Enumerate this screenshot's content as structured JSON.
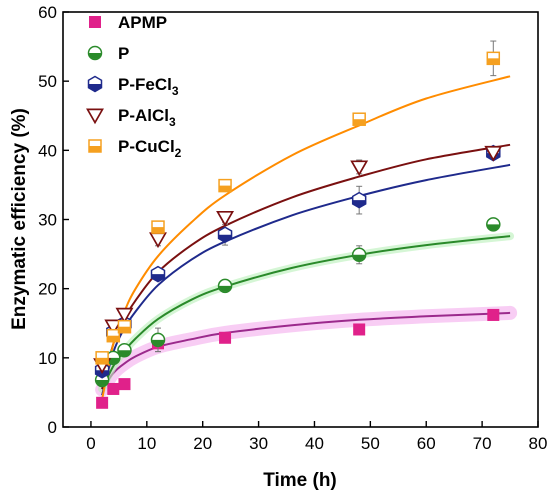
{
  "chart_data": {
    "type": "scatter",
    "title": "",
    "xlabel": "Time (h)",
    "ylabel": "Enzymatic efficiency (%)",
    "xlim": [
      -5,
      80
    ],
    "ylim": [
      0,
      60
    ],
    "xticks": [
      0,
      10,
      20,
      30,
      40,
      50,
      60,
      70,
      80
    ],
    "yticks": [
      0,
      10,
      20,
      30,
      40,
      50,
      60
    ],
    "grid": false,
    "legend_position": "top-left",
    "series": [
      {
        "name": "APMP",
        "name_main": "APMP",
        "name_sub": "",
        "color": "#e0218a",
        "fit_color": "#9b2a8c",
        "marker": "filled-square",
        "x": [
          2,
          4,
          6,
          12,
          24,
          48,
          72
        ],
        "y": [
          3.5,
          5.5,
          6.2,
          12.1,
          12.9,
          14.1,
          16.2
        ],
        "error": [
          0.3,
          0.4,
          0.4,
          1.2,
          0.4,
          0.6,
          0.5
        ],
        "fit": [
          [
            2,
            5.4
          ],
          [
            4,
            7.8
          ],
          [
            6,
            9.2
          ],
          [
            8,
            10.2
          ],
          [
            12,
            11.6
          ],
          [
            18,
            12.7
          ],
          [
            24,
            13.6
          ],
          [
            36,
            14.7
          ],
          [
            48,
            15.5
          ],
          [
            60,
            16.0
          ],
          [
            75,
            16.5
          ]
        ]
      },
      {
        "name": "P",
        "name_main": "P",
        "name_sub": "",
        "color": "#2a8a2a",
        "fit_color": "#2a8a2a",
        "marker": "half-filled-circle",
        "x": [
          2,
          4,
          6,
          12,
          24,
          48,
          72
        ],
        "y": [
          6.8,
          10.0,
          11.1,
          12.6,
          20.4,
          24.9,
          29.3
        ],
        "error": [
          0.5,
          0.5,
          0.6,
          1.7,
          0.5,
          1.3,
          0.5
        ],
        "fit": [
          [
            2,
            5.5
          ],
          [
            4,
            8.8
          ],
          [
            6,
            11.0
          ],
          [
            8,
            12.8
          ],
          [
            12,
            15.6
          ],
          [
            18,
            18.4
          ],
          [
            24,
            20.3
          ],
          [
            36,
            23.0
          ],
          [
            48,
            24.9
          ],
          [
            60,
            26.3
          ],
          [
            75,
            27.6
          ]
        ]
      },
      {
        "name": "P-FeCl3",
        "name_main": "P-FeCl",
        "name_sub": "3",
        "color": "#1f2a8c",
        "fit_color": "#1f2a8c",
        "marker": "half-filled-hexagon",
        "x": [
          2,
          4,
          6,
          12,
          24,
          48,
          72
        ],
        "y": [
          8.2,
          13.7,
          14.9,
          22.1,
          27.8,
          32.8,
          39.6
        ],
        "error": [
          0.6,
          0.6,
          0.8,
          0.8,
          1.5,
          2.0,
          0.6
        ],
        "fit": [
          [
            2,
            4.6
          ],
          [
            4,
            10.8
          ],
          [
            6,
            14.3
          ],
          [
            8,
            16.7
          ],
          [
            12,
            20.5
          ],
          [
            18,
            24.2
          ],
          [
            24,
            26.8
          ],
          [
            36,
            30.6
          ],
          [
            48,
            33.4
          ],
          [
            60,
            35.7
          ],
          [
            75,
            37.9
          ]
        ]
      },
      {
        "name": "P-AlCl3",
        "name_main": "P-AlCl",
        "name_sub": "3",
        "color": "#7a1010",
        "fit_color": "#7a1010",
        "marker": "open-triangle-down",
        "x": [
          2,
          4,
          6,
          12,
          24,
          48,
          72
        ],
        "y": [
          9.0,
          14.6,
          16.3,
          27.2,
          30.3,
          37.6,
          39.7
        ],
        "error": [
          0.5,
          0.6,
          0.7,
          1.0,
          0.7,
          1.0,
          0.6
        ],
        "fit": [
          [
            2,
            5.5
          ],
          [
            4,
            12.0
          ],
          [
            6,
            15.7
          ],
          [
            8,
            18.3
          ],
          [
            12,
            22.4
          ],
          [
            18,
            26.3
          ],
          [
            24,
            29.1
          ],
          [
            36,
            33.2
          ],
          [
            48,
            36.2
          ],
          [
            60,
            38.7
          ],
          [
            75,
            40.8
          ]
        ]
      },
      {
        "name": "P-CuCl2",
        "name_main": "P-CuCl",
        "name_sub": "2",
        "color": "#f5a020",
        "fit_color": "#ff8c00",
        "marker": "half-filled-square",
        "x": [
          2,
          4,
          6,
          12,
          24,
          48,
          72
        ],
        "y": [
          10.0,
          13.2,
          14.5,
          28.9,
          34.9,
          44.5,
          53.3
        ],
        "error": [
          0.5,
          0.6,
          0.7,
          0.7,
          0.7,
          0.8,
          2.5
        ],
        "fit": [
          [
            2,
            4.0
          ],
          [
            4,
            12.0
          ],
          [
            6,
            16.7
          ],
          [
            8,
            20.0
          ],
          [
            12,
            24.7
          ],
          [
            18,
            29.6
          ],
          [
            24,
            33.5
          ],
          [
            36,
            39.3
          ],
          [
            48,
            43.6
          ],
          [
            60,
            47.5
          ],
          [
            75,
            50.7
          ]
        ]
      }
    ]
  }
}
